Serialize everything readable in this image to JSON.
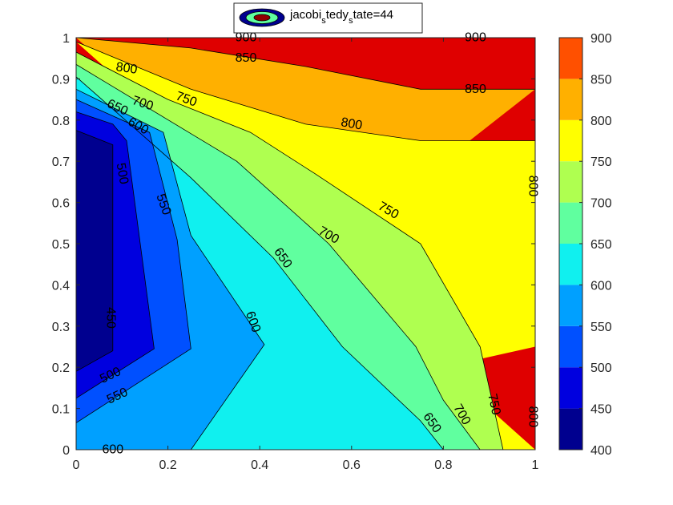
{
  "chart_data": {
    "type": "heatmap",
    "subtype": "filled-contour",
    "legend": {
      "label": "jacobi_s tedy_s tate=44",
      "placement": "top-center"
    },
    "x_ticks": [
      "0",
      "0.2",
      "0.4",
      "0.6",
      "0.8",
      "1"
    ],
    "y_ticks": [
      "0",
      "0.1",
      "0.2",
      "0.3",
      "0.4",
      "0.5",
      "0.6",
      "0.7",
      "0.8",
      "0.9",
      "1"
    ],
    "colorbar_ticks": [
      "400",
      "450",
      "500",
      "550",
      "600",
      "650",
      "700",
      "750",
      "800",
      "850",
      "900"
    ],
    "xlim": [
      0,
      1
    ],
    "ylim": [
      0,
      1
    ],
    "clim": [
      400,
      900
    ],
    "grid": false,
    "colormap": "jet",
    "levels": [
      {
        "v": 400,
        "color": "#00008F"
      },
      {
        "v": 450,
        "color": "#0000DF"
      },
      {
        "v": 500,
        "color": "#0050FF"
      },
      {
        "v": 550,
        "color": "#00A0FF"
      },
      {
        "v": 600,
        "color": "#10F0EF"
      },
      {
        "v": 650,
        "color": "#60FF9F"
      },
      {
        "v": 700,
        "color": "#AFFF50"
      },
      {
        "v": 750,
        "color": "#FFFF00"
      },
      {
        "v": 800,
        "color": "#FFB000"
      },
      {
        "v": 850,
        "color": "#FF5000"
      },
      {
        "v": 900,
        "color": "#DF0000"
      }
    ],
    "contours": [
      {
        "level": 450,
        "points": [
          [
            0.0,
            0.19
          ],
          [
            0.08,
            0.24
          ],
          [
            0.08,
            0.74
          ],
          [
            0.0,
            0.775
          ]
        ]
      },
      {
        "level": 500,
        "points": [
          [
            0.0,
            0.125
          ],
          [
            0.17,
            0.245
          ],
          [
            0.11,
            0.75
          ],
          [
            0.08,
            0.79
          ],
          [
            0.0,
            0.82
          ]
        ]
      },
      {
        "level": 550,
        "points": [
          [
            0.0,
            0.065
          ],
          [
            0.25,
            0.245
          ],
          [
            0.22,
            0.51
          ],
          [
            0.16,
            0.77
          ],
          [
            0.0,
            0.85
          ]
        ]
      },
      {
        "level": 600,
        "points": [
          [
            0.25,
            0.0
          ],
          [
            0.41,
            0.255
          ],
          [
            0.25,
            0.52
          ],
          [
            0.19,
            0.77
          ],
          [
            0.0,
            0.875
          ]
        ]
      },
      {
        "level": 650,
        "points": [
          [
            0.8,
            0.0
          ],
          [
            0.75,
            0.07
          ],
          [
            0.58,
            0.25
          ],
          [
            0.43,
            0.465
          ],
          [
            0.25,
            0.66
          ],
          [
            0.0,
            0.905
          ]
        ]
      },
      {
        "level": 700,
        "points": [
          [
            0.88,
            0.0
          ],
          [
            0.8,
            0.12
          ],
          [
            0.74,
            0.25
          ],
          [
            0.55,
            0.5
          ],
          [
            0.35,
            0.7
          ],
          [
            0.0,
            0.935
          ]
        ]
      },
      {
        "level": 750,
        "points": [
          [
            0.93,
            0.0
          ],
          [
            0.88,
            0.25
          ],
          [
            0.75,
            0.5
          ],
          [
            0.52,
            0.67
          ],
          [
            0.38,
            0.77
          ],
          [
            0.2,
            0.85
          ],
          [
            0.0,
            0.965
          ]
        ]
      },
      {
        "level": 800,
        "points": [
          [
            1.0,
            0.25
          ],
          [
            1.0,
            0.75
          ],
          [
            0.75,
            0.75
          ],
          [
            0.5,
            0.79
          ],
          [
            0.25,
            0.875
          ],
          [
            0.0,
            0.99
          ]
        ]
      },
      {
        "level": 850,
        "points": [
          [
            1.0,
            0.875
          ],
          [
            0.75,
            0.875
          ],
          [
            0.5,
            0.93
          ],
          [
            0.25,
            0.975
          ],
          [
            0.0,
            1.0
          ]
        ]
      },
      {
        "level": 900,
        "points": [
          [
            0.0,
            1.0
          ],
          [
            1.0,
            1.0
          ]
        ]
      }
    ],
    "labels": [
      {
        "text": "900",
        "x": 0.37,
        "y": 1.0,
        "angle": 0
      },
      {
        "text": "900",
        "x": 0.87,
        "y": 1.0,
        "angle": 0
      },
      {
        "text": "850",
        "x": 0.37,
        "y": 0.95,
        "angle": 0
      },
      {
        "text": "850",
        "x": 0.87,
        "y": 0.875,
        "angle": 0
      },
      {
        "text": "800",
        "x": 0.11,
        "y": 0.925,
        "angle": 8
      },
      {
        "text": "800",
        "x": 0.6,
        "y": 0.79,
        "angle": 10
      },
      {
        "text": "800",
        "x": 0.995,
        "y": 0.64,
        "angle": 90
      },
      {
        "text": "800",
        "x": 0.995,
        "y": 0.08,
        "angle": 90
      },
      {
        "text": "750",
        "x": 0.24,
        "y": 0.85,
        "angle": 20
      },
      {
        "text": "750",
        "x": 0.68,
        "y": 0.58,
        "angle": 30
      },
      {
        "text": "750",
        "x": 0.91,
        "y": 0.11,
        "angle": 78
      },
      {
        "text": "700",
        "x": 0.145,
        "y": 0.84,
        "angle": 18
      },
      {
        "text": "700",
        "x": 0.55,
        "y": 0.52,
        "angle": 30
      },
      {
        "text": "700",
        "x": 0.84,
        "y": 0.085,
        "angle": 60
      },
      {
        "text": "650",
        "x": 0.09,
        "y": 0.83,
        "angle": 25
      },
      {
        "text": "650",
        "x": 0.45,
        "y": 0.465,
        "angle": 55
      },
      {
        "text": "650",
        "x": 0.775,
        "y": 0.065,
        "angle": 55
      },
      {
        "text": "600",
        "x": 0.135,
        "y": 0.785,
        "angle": 30
      },
      {
        "text": "600",
        "x": 0.385,
        "y": 0.31,
        "angle": 70
      },
      {
        "text": "600",
        "x": 0.08,
        "y": 0.0,
        "angle": 0
      },
      {
        "text": "550",
        "x": 0.19,
        "y": 0.595,
        "angle": 70
      },
      {
        "text": "550",
        "x": 0.09,
        "y": 0.13,
        "angle": -25
      },
      {
        "text": "500",
        "x": 0.1,
        "y": 0.67,
        "angle": 80
      },
      {
        "text": "500",
        "x": 0.075,
        "y": 0.18,
        "angle": -25
      },
      {
        "text": "450",
        "x": 0.075,
        "y": 0.32,
        "angle": 90
      }
    ]
  }
}
